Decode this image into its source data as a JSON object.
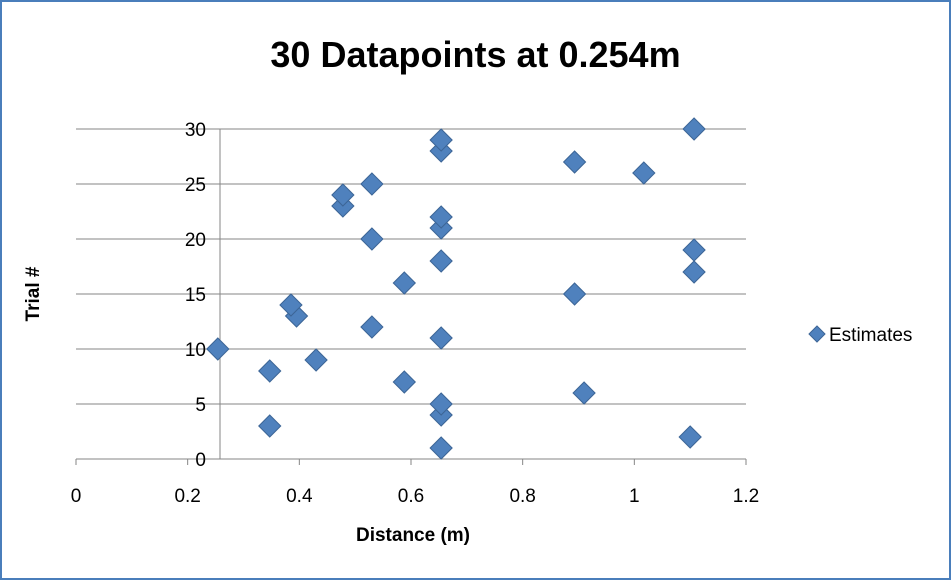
{
  "chart_data": {
    "type": "scatter",
    "title": "30 Datapoints at 0.254m",
    "xlabel": "Distance (m)",
    "ylabel": "Trial #",
    "xlim": [
      0,
      1.2
    ],
    "ylim": [
      0,
      30
    ],
    "x_ticks": [
      "0",
      "0.2",
      "0.4",
      "0.6",
      "0.8",
      "1",
      "1.2"
    ],
    "y_ticks": [
      "0",
      "5",
      "10",
      "15",
      "20",
      "25",
      "30"
    ],
    "grid": "horizontal",
    "legend_position": "right",
    "marker_color": "#4f81bd",
    "series": [
      {
        "name": "Estimates",
        "points": [
          {
            "x": 0.654,
            "y": 1
          },
          {
            "x": 1.1,
            "y": 2
          },
          {
            "x": 0.347,
            "y": 3
          },
          {
            "x": 0.654,
            "y": 4
          },
          {
            "x": 0.654,
            "y": 5
          },
          {
            "x": 0.91,
            "y": 6
          },
          {
            "x": 0.588,
            "y": 7
          },
          {
            "x": 0.347,
            "y": 8
          },
          {
            "x": 0.43,
            "y": 9
          },
          {
            "x": 0.254,
            "y": 10
          },
          {
            "x": 0.654,
            "y": 11
          },
          {
            "x": 0.53,
            "y": 12
          },
          {
            "x": 0.395,
            "y": 13
          },
          {
            "x": 0.385,
            "y": 14
          },
          {
            "x": 0.893,
            "y": 15
          },
          {
            "x": 0.588,
            "y": 16
          },
          {
            "x": 1.107,
            "y": 17
          },
          {
            "x": 0.654,
            "y": 18
          },
          {
            "x": 1.107,
            "y": 19
          },
          {
            "x": 0.53,
            "y": 20
          },
          {
            "x": 0.654,
            "y": 21
          },
          {
            "x": 0.654,
            "y": 22
          },
          {
            "x": 0.478,
            "y": 23
          },
          {
            "x": 0.478,
            "y": 24
          },
          {
            "x": 0.53,
            "y": 25
          },
          {
            "x": 1.017,
            "y": 26
          },
          {
            "x": 0.893,
            "y": 27
          },
          {
            "x": 0.654,
            "y": 28
          },
          {
            "x": 0.654,
            "y": 29
          },
          {
            "x": 1.107,
            "y": 30
          }
        ]
      }
    ]
  }
}
